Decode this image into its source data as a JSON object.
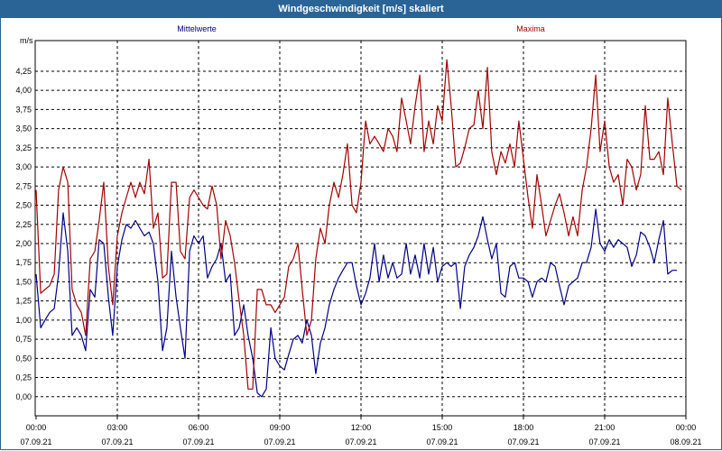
{
  "window": {
    "title": "Windgeschwindigkeit [m/s] skaliert"
  },
  "colors": {
    "title_bar": "#2a6496",
    "mean": "#00008b",
    "max": "#a50000",
    "grid": "#000000"
  },
  "chart_data": {
    "type": "line",
    "title": "Windgeschwindigkeit [m/s] skaliert",
    "ylabel": "m/s",
    "ylim": [
      -0.25,
      4.65
    ],
    "y_ticks": [
      "0,00",
      "0,25",
      "0,50",
      "0,75",
      "1,00",
      "1,25",
      "1,50",
      "1,75",
      "2,00",
      "2,25",
      "2,50",
      "2,75",
      "3,00",
      "3,25",
      "3,50",
      "3,75",
      "4,00",
      "4,25"
    ],
    "x_ticks": [
      {
        "time": "00:00",
        "date": "07.09.21"
      },
      {
        "time": "03:00",
        "date": "07.09.21"
      },
      {
        "time": "06:00",
        "date": "07.09.21"
      },
      {
        "time": "09:00",
        "date": "07.09.21"
      },
      {
        "time": "12:00",
        "date": "07.09.21"
      },
      {
        "time": "15:00",
        "date": "07.09.21"
      },
      {
        "time": "18:00",
        "date": "07.09.21"
      },
      {
        "time": "21:00",
        "date": "07.09.21"
      },
      {
        "time": "00:00",
        "date": "08.09.21"
      }
    ],
    "x_unit": "hours since 07.09.21 00:00",
    "xlim": [
      0,
      24
    ],
    "grid": true,
    "series": [
      {
        "name": "Mittelwerte",
        "color": "#00008b",
        "points": [
          [
            0,
            1.6
          ],
          [
            0.17,
            0.9
          ],
          [
            0.33,
            1.0
          ],
          [
            0.5,
            1.1
          ],
          [
            0.67,
            1.15
          ],
          [
            0.83,
            1.6
          ],
          [
            1.0,
            2.4
          ],
          [
            1.17,
            1.9
          ],
          [
            1.33,
            0.8
          ],
          [
            1.5,
            0.9
          ],
          [
            1.67,
            0.8
          ],
          [
            1.83,
            0.6
          ],
          [
            2.0,
            1.4
          ],
          [
            2.17,
            1.3
          ],
          [
            2.33,
            2.05
          ],
          [
            2.5,
            2.0
          ],
          [
            2.67,
            1.3
          ],
          [
            2.83,
            0.8
          ],
          [
            3.0,
            1.7
          ],
          [
            3.17,
            2.05
          ],
          [
            3.33,
            2.25
          ],
          [
            3.5,
            2.2
          ],
          [
            3.67,
            2.3
          ],
          [
            3.83,
            2.2
          ],
          [
            4.0,
            2.1
          ],
          [
            4.17,
            2.15
          ],
          [
            4.33,
            2.0
          ],
          [
            4.5,
            1.5
          ],
          [
            4.67,
            0.6
          ],
          [
            4.83,
            0.9
          ],
          [
            5.0,
            1.9
          ],
          [
            5.17,
            1.3
          ],
          [
            5.33,
            0.9
          ],
          [
            5.5,
            0.5
          ],
          [
            5.67,
            1.9
          ],
          [
            5.83,
            2.1
          ],
          [
            6.0,
            2.0
          ],
          [
            6.17,
            2.1
          ],
          [
            6.33,
            1.55
          ],
          [
            6.5,
            1.7
          ],
          [
            6.67,
            1.8
          ],
          [
            6.83,
            2.0
          ],
          [
            7.0,
            1.5
          ],
          [
            7.17,
            1.6
          ],
          [
            7.33,
            0.8
          ],
          [
            7.5,
            0.9
          ],
          [
            7.67,
            1.2
          ],
          [
            7.83,
            0.8
          ],
          [
            8.0,
            0.5
          ],
          [
            8.17,
            0.05
          ],
          [
            8.33,
            0.0
          ],
          [
            8.5,
            0.1
          ],
          [
            8.67,
            0.9
          ],
          [
            8.83,
            0.5
          ],
          [
            9.0,
            0.4
          ],
          [
            9.17,
            0.35
          ],
          [
            9.33,
            0.55
          ],
          [
            9.5,
            0.75
          ],
          [
            9.67,
            0.8
          ],
          [
            9.83,
            0.7
          ],
          [
            10.0,
            1.0
          ],
          [
            10.17,
            0.8
          ],
          [
            10.33,
            0.3
          ],
          [
            10.5,
            0.7
          ],
          [
            10.67,
            0.9
          ],
          [
            10.83,
            1.2
          ],
          [
            11.0,
            1.4
          ],
          [
            11.17,
            1.55
          ],
          [
            11.33,
            1.65
          ],
          [
            11.5,
            1.75
          ],
          [
            11.67,
            1.75
          ],
          [
            11.83,
            1.45
          ],
          [
            12.0,
            1.2
          ],
          [
            12.17,
            1.35
          ],
          [
            12.33,
            1.55
          ],
          [
            12.5,
            2.0
          ],
          [
            12.67,
            1.5
          ],
          [
            12.83,
            1.85
          ],
          [
            13.0,
            1.55
          ],
          [
            13.17,
            1.75
          ],
          [
            13.33,
            1.55
          ],
          [
            13.5,
            1.6
          ],
          [
            13.67,
            2.0
          ],
          [
            13.83,
            1.6
          ],
          [
            14.0,
            1.85
          ],
          [
            14.17,
            1.55
          ],
          [
            14.33,
            2.0
          ],
          [
            14.5,
            1.6
          ],
          [
            14.67,
            1.95
          ],
          [
            14.83,
            1.5
          ],
          [
            15.0,
            1.7
          ],
          [
            15.17,
            1.75
          ],
          [
            15.33,
            1.7
          ],
          [
            15.5,
            1.75
          ],
          [
            15.67,
            1.15
          ],
          [
            15.83,
            1.7
          ],
          [
            16.0,
            1.85
          ],
          [
            16.17,
            1.95
          ],
          [
            16.33,
            2.1
          ],
          [
            16.5,
            2.35
          ],
          [
            16.67,
            2.05
          ],
          [
            16.83,
            1.8
          ],
          [
            17.0,
            2.0
          ],
          [
            17.17,
            1.35
          ],
          [
            17.33,
            1.3
          ],
          [
            17.5,
            1.7
          ],
          [
            17.67,
            1.75
          ],
          [
            17.83,
            1.55
          ],
          [
            18.0,
            1.55
          ],
          [
            18.17,
            1.5
          ],
          [
            18.33,
            1.3
          ],
          [
            18.5,
            1.5
          ],
          [
            18.67,
            1.55
          ],
          [
            18.83,
            1.5
          ],
          [
            19.0,
            1.75
          ],
          [
            19.17,
            1.7
          ],
          [
            19.33,
            1.45
          ],
          [
            19.5,
            1.2
          ],
          [
            19.67,
            1.45
          ],
          [
            19.83,
            1.5
          ],
          [
            20.0,
            1.55
          ],
          [
            20.17,
            1.75
          ],
          [
            20.33,
            1.75
          ],
          [
            20.5,
            1.95
          ],
          [
            20.67,
            2.45
          ],
          [
            20.83,
            2.0
          ],
          [
            21.0,
            1.9
          ],
          [
            21.17,
            2.05
          ],
          [
            21.33,
            1.95
          ],
          [
            21.5,
            2.05
          ],
          [
            21.67,
            2.0
          ],
          [
            21.83,
            1.95
          ],
          [
            22.0,
            1.7
          ],
          [
            22.17,
            1.85
          ],
          [
            22.33,
            2.15
          ],
          [
            22.5,
            2.1
          ],
          [
            22.67,
            1.95
          ],
          [
            22.83,
            1.75
          ],
          [
            23.0,
            2.05
          ],
          [
            23.17,
            2.3
          ],
          [
            23.33,
            1.6
          ],
          [
            23.5,
            1.65
          ],
          [
            23.67,
            1.65
          ]
        ]
      },
      {
        "name": "Maxima",
        "color": "#a50000",
        "points": [
          [
            0,
            2.7
          ],
          [
            0.17,
            1.35
          ],
          [
            0.33,
            1.4
          ],
          [
            0.5,
            1.45
          ],
          [
            0.67,
            1.6
          ],
          [
            0.83,
            2.7
          ],
          [
            1.0,
            3.0
          ],
          [
            1.17,
            2.8
          ],
          [
            1.33,
            1.4
          ],
          [
            1.5,
            1.2
          ],
          [
            1.67,
            1.1
          ],
          [
            1.83,
            0.8
          ],
          [
            2.0,
            1.8
          ],
          [
            2.17,
            1.9
          ],
          [
            2.33,
            2.3
          ],
          [
            2.5,
            2.8
          ],
          [
            2.67,
            1.7
          ],
          [
            2.83,
            1.2
          ],
          [
            3.0,
            2.1
          ],
          [
            3.17,
            2.4
          ],
          [
            3.33,
            2.6
          ],
          [
            3.5,
            2.8
          ],
          [
            3.67,
            2.6
          ],
          [
            3.83,
            2.8
          ],
          [
            4.0,
            2.65
          ],
          [
            4.17,
            3.1
          ],
          [
            4.33,
            2.2
          ],
          [
            4.5,
            2.4
          ],
          [
            4.67,
            1.55
          ],
          [
            4.83,
            1.6
          ],
          [
            5.0,
            2.8
          ],
          [
            5.17,
            2.8
          ],
          [
            5.33,
            1.9
          ],
          [
            5.5,
            1.8
          ],
          [
            5.67,
            2.6
          ],
          [
            5.83,
            2.7
          ],
          [
            6.0,
            2.6
          ],
          [
            6.17,
            2.5
          ],
          [
            6.33,
            2.45
          ],
          [
            6.5,
            2.75
          ],
          [
            6.67,
            2.5
          ],
          [
            6.83,
            1.8
          ],
          [
            7.0,
            2.3
          ],
          [
            7.17,
            2.1
          ],
          [
            7.33,
            1.75
          ],
          [
            7.5,
            1.25
          ],
          [
            7.67,
            0.8
          ],
          [
            7.83,
            0.1
          ],
          [
            8.0,
            0.1
          ],
          [
            8.17,
            1.4
          ],
          [
            8.33,
            1.4
          ],
          [
            8.5,
            1.2
          ],
          [
            8.67,
            1.2
          ],
          [
            8.83,
            1.1
          ],
          [
            9.0,
            1.2
          ],
          [
            9.17,
            1.3
          ],
          [
            9.33,
            1.7
          ],
          [
            9.5,
            1.8
          ],
          [
            9.67,
            2.0
          ],
          [
            9.83,
            1.4
          ],
          [
            10.0,
            0.8
          ],
          [
            10.17,
            1.0
          ],
          [
            10.33,
            1.8
          ],
          [
            10.5,
            2.2
          ],
          [
            10.67,
            2.0
          ],
          [
            10.83,
            2.5
          ],
          [
            11.0,
            2.8
          ],
          [
            11.17,
            2.6
          ],
          [
            11.33,
            2.9
          ],
          [
            11.5,
            3.3
          ],
          [
            11.67,
            2.5
          ],
          [
            11.83,
            2.4
          ],
          [
            12.0,
            2.8
          ],
          [
            12.17,
            3.6
          ],
          [
            12.33,
            3.3
          ],
          [
            12.5,
            3.4
          ],
          [
            12.67,
            3.3
          ],
          [
            12.83,
            3.2
          ],
          [
            13.0,
            3.5
          ],
          [
            13.17,
            3.4
          ],
          [
            13.33,
            3.2
          ],
          [
            13.5,
            3.9
          ],
          [
            13.67,
            3.6
          ],
          [
            13.83,
            3.3
          ],
          [
            14.0,
            3.8
          ],
          [
            14.17,
            4.2
          ],
          [
            14.33,
            3.2
          ],
          [
            14.5,
            3.6
          ],
          [
            14.67,
            3.3
          ],
          [
            14.83,
            3.8
          ],
          [
            15.0,
            3.6
          ],
          [
            15.17,
            4.4
          ],
          [
            15.33,
            3.8
          ],
          [
            15.5,
            3.0
          ],
          [
            15.67,
            3.05
          ],
          [
            15.83,
            3.25
          ],
          [
            16.0,
            3.5
          ],
          [
            16.17,
            3.55
          ],
          [
            16.33,
            4.0
          ],
          [
            16.5,
            3.5
          ],
          [
            16.67,
            4.3
          ],
          [
            16.83,
            3.2
          ],
          [
            17.0,
            2.9
          ],
          [
            17.17,
            3.2
          ],
          [
            17.33,
            3.05
          ],
          [
            17.5,
            3.3
          ],
          [
            17.67,
            3.0
          ],
          [
            17.83,
            3.6
          ],
          [
            18.0,
            3.1
          ],
          [
            18.17,
            2.6
          ],
          [
            18.33,
            2.2
          ],
          [
            18.5,
            2.9
          ],
          [
            18.67,
            2.5
          ],
          [
            18.83,
            2.1
          ],
          [
            19.0,
            2.3
          ],
          [
            19.17,
            2.5
          ],
          [
            19.33,
            2.65
          ],
          [
            19.5,
            2.4
          ],
          [
            19.67,
            2.1
          ],
          [
            19.83,
            2.35
          ],
          [
            20.0,
            2.1
          ],
          [
            20.17,
            2.7
          ],
          [
            20.33,
            3.0
          ],
          [
            20.5,
            3.5
          ],
          [
            20.67,
            4.2
          ],
          [
            20.83,
            3.2
          ],
          [
            21.0,
            3.6
          ],
          [
            21.17,
            3.0
          ],
          [
            21.33,
            2.8
          ],
          [
            21.5,
            2.9
          ],
          [
            21.67,
            2.5
          ],
          [
            21.83,
            3.1
          ],
          [
            22.0,
            3.0
          ],
          [
            22.17,
            2.7
          ],
          [
            22.33,
            2.9
          ],
          [
            22.5,
            3.8
          ],
          [
            22.67,
            3.1
          ],
          [
            22.83,
            3.1
          ],
          [
            23.0,
            3.2
          ],
          [
            23.17,
            2.9
          ],
          [
            23.33,
            3.9
          ],
          [
            23.5,
            3.3
          ],
          [
            23.67,
            2.75
          ],
          [
            23.83,
            2.7
          ]
        ]
      }
    ]
  }
}
